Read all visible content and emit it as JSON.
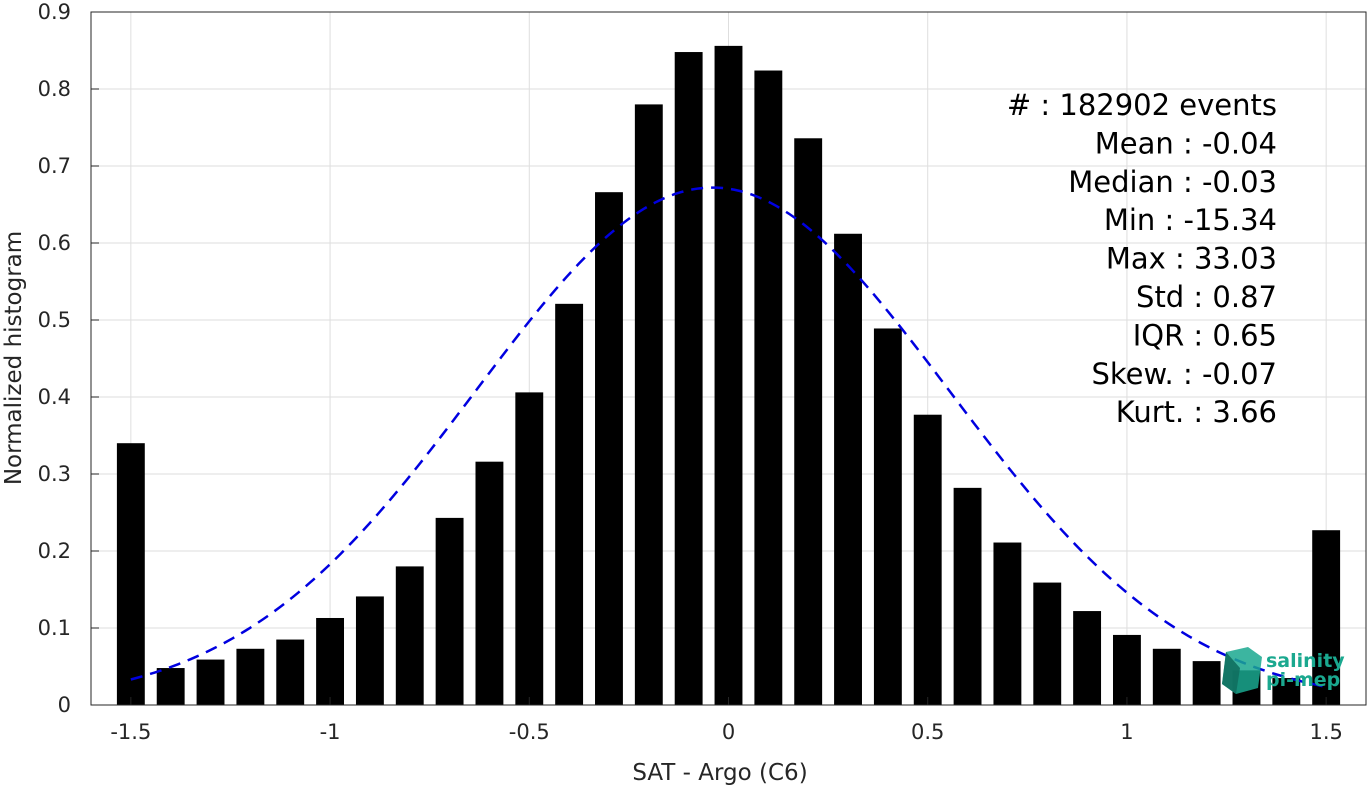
{
  "chart_data": {
    "type": "bar",
    "xlabel": "SAT - Argo (C6)",
    "ylabel": "Normalized histogram",
    "xlim": [
      -1.6,
      1.6
    ],
    "ylim": [
      0,
      0.9
    ],
    "xticks": [
      -1.5,
      -1,
      -0.5,
      0,
      0.5,
      1,
      1.5
    ],
    "xtick_labels": [
      "-1.5",
      "-1",
      "-0.5",
      "0",
      "0.5",
      "1",
      "1.5"
    ],
    "yticks": [
      0,
      0.1,
      0.2,
      0.3,
      0.4,
      0.5,
      0.6,
      0.7,
      0.8,
      0.9
    ],
    "ytick_labels": [
      "0",
      "0.1",
      "0.2",
      "0.3",
      "0.4",
      "0.5",
      "0.6",
      "0.7",
      "0.8",
      "0.9"
    ],
    "grid": true,
    "bar_width": 0.07,
    "bars": {
      "x": [
        -1.5,
        -1.4,
        -1.3,
        -1.2,
        -1.1,
        -1.0,
        -0.9,
        -0.8,
        -0.7,
        -0.6,
        -0.5,
        -0.4,
        -0.3,
        -0.2,
        -0.1,
        0.0,
        0.1,
        0.2,
        0.3,
        0.4,
        0.5,
        0.6,
        0.7,
        0.8,
        0.9,
        1.0,
        1.1,
        1.2,
        1.3,
        1.4,
        1.5
      ],
      "values": [
        0.34,
        0.048,
        0.059,
        0.073,
        0.085,
        0.113,
        0.141,
        0.18,
        0.243,
        0.316,
        0.406,
        0.521,
        0.666,
        0.78,
        0.848,
        0.856,
        0.824,
        0.736,
        0.612,
        0.489,
        0.377,
        0.282,
        0.211,
        0.159,
        0.122,
        0.091,
        0.073,
        0.057,
        0.045,
        0.035,
        0.227
      ],
      "color": "#000000"
    },
    "fit_curve": {
      "style": "dashed",
      "color": "#0000e0",
      "mean": -0.04,
      "std": 0.595,
      "peak": 0.672,
      "x_range": [
        -1.5,
        1.5
      ]
    },
    "stats": [
      {
        "label": "#  : 182902 events"
      },
      {
        "label": "Mean : -0.04"
      },
      {
        "label": "Median : -0.03"
      },
      {
        "label": "Min : -15.34"
      },
      {
        "label": "Max : 33.03"
      },
      {
        "label": "Std : 0.87"
      },
      {
        "label": "IQR : 0.65"
      },
      {
        "label": "Skew. : -0.07"
      },
      {
        "label": "Kurt. : 3.66"
      }
    ]
  },
  "logo": {
    "line1": "salinity",
    "line2": "pi-mep",
    "colors": [
      "#1aa88f",
      "#0f6f5f"
    ]
  }
}
